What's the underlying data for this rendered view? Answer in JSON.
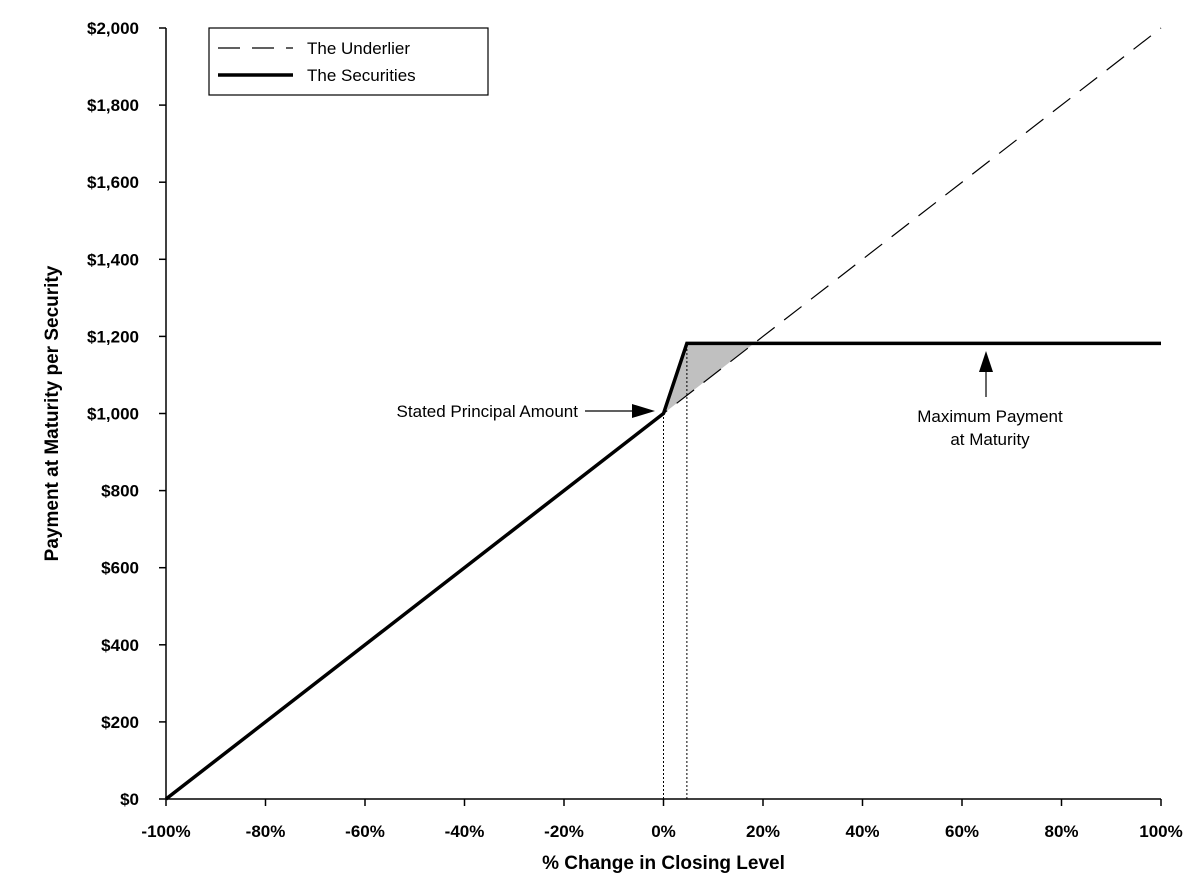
{
  "chart_data": {
    "type": "line",
    "title": "",
    "xlabel": "% Change in Closing Level",
    "ylabel": "Payment at Maturity per Security",
    "xlim": [
      -100,
      100
    ],
    "ylim": [
      0,
      2000
    ],
    "x_ticks": [
      {
        "value": -100,
        "label": "-100%"
      },
      {
        "value": -80,
        "label": "-80%"
      },
      {
        "value": -60,
        "label": "-60%"
      },
      {
        "value": -40,
        "label": "-40%"
      },
      {
        "value": -20,
        "label": "-20%"
      },
      {
        "value": 0,
        "label": "0%"
      },
      {
        "value": 20,
        "label": "20%"
      },
      {
        "value": 40,
        "label": "40%"
      },
      {
        "value": 60,
        "label": "60%"
      },
      {
        "value": 80,
        "label": "80%"
      },
      {
        "value": 100,
        "label": "100%"
      }
    ],
    "y_ticks": [
      {
        "value": 0,
        "label": "$0"
      },
      {
        "value": 200,
        "label": "$200"
      },
      {
        "value": 400,
        "label": "$400"
      },
      {
        "value": 600,
        "label": "$600"
      },
      {
        "value": 800,
        "label": "$800"
      },
      {
        "value": 1000,
        "label": "$1,000"
      },
      {
        "value": 1200,
        "label": "$1,200"
      },
      {
        "value": 1400,
        "label": "$1,400"
      },
      {
        "value": 1600,
        "label": "$1,600"
      },
      {
        "value": 1800,
        "label": "$1,800"
      },
      {
        "value": 2000,
        "label": "$2,000"
      }
    ],
    "series": [
      {
        "name": "The Underlier",
        "style": "dashed",
        "x": [
          -100,
          100
        ],
        "y": [
          0,
          2000
        ]
      },
      {
        "name": "The Securities",
        "style": "solid-thick",
        "x": [
          -100,
          0,
          4.7,
          100
        ],
        "y": [
          0,
          1000,
          1182,
          1182
        ]
      }
    ],
    "shaded_region": {
      "x": [
        0,
        4.7,
        18.2
      ],
      "y": [
        1000,
        1182,
        1182
      ],
      "color": "#c0c0c0"
    },
    "reference_lines": [
      {
        "x": 0,
        "y_from": 0,
        "y_to": 1000
      },
      {
        "x": 4.7,
        "y_from": 0,
        "y_to": 1182
      }
    ],
    "annotations": [
      {
        "text": "Stated Principal Amount",
        "points_to": [
          0,
          1000
        ]
      },
      {
        "lines": [
          "Maximum Payment",
          "at Maturity"
        ],
        "points_to": [
          65,
          1182
        ]
      }
    ],
    "legend": {
      "position": "top-left",
      "entries": [
        "The Underlier",
        "The Securities"
      ]
    },
    "grid": false,
    "colors": {
      "line": "#000000",
      "shade": "#c0c0c0",
      "background": "#ffffff"
    }
  }
}
